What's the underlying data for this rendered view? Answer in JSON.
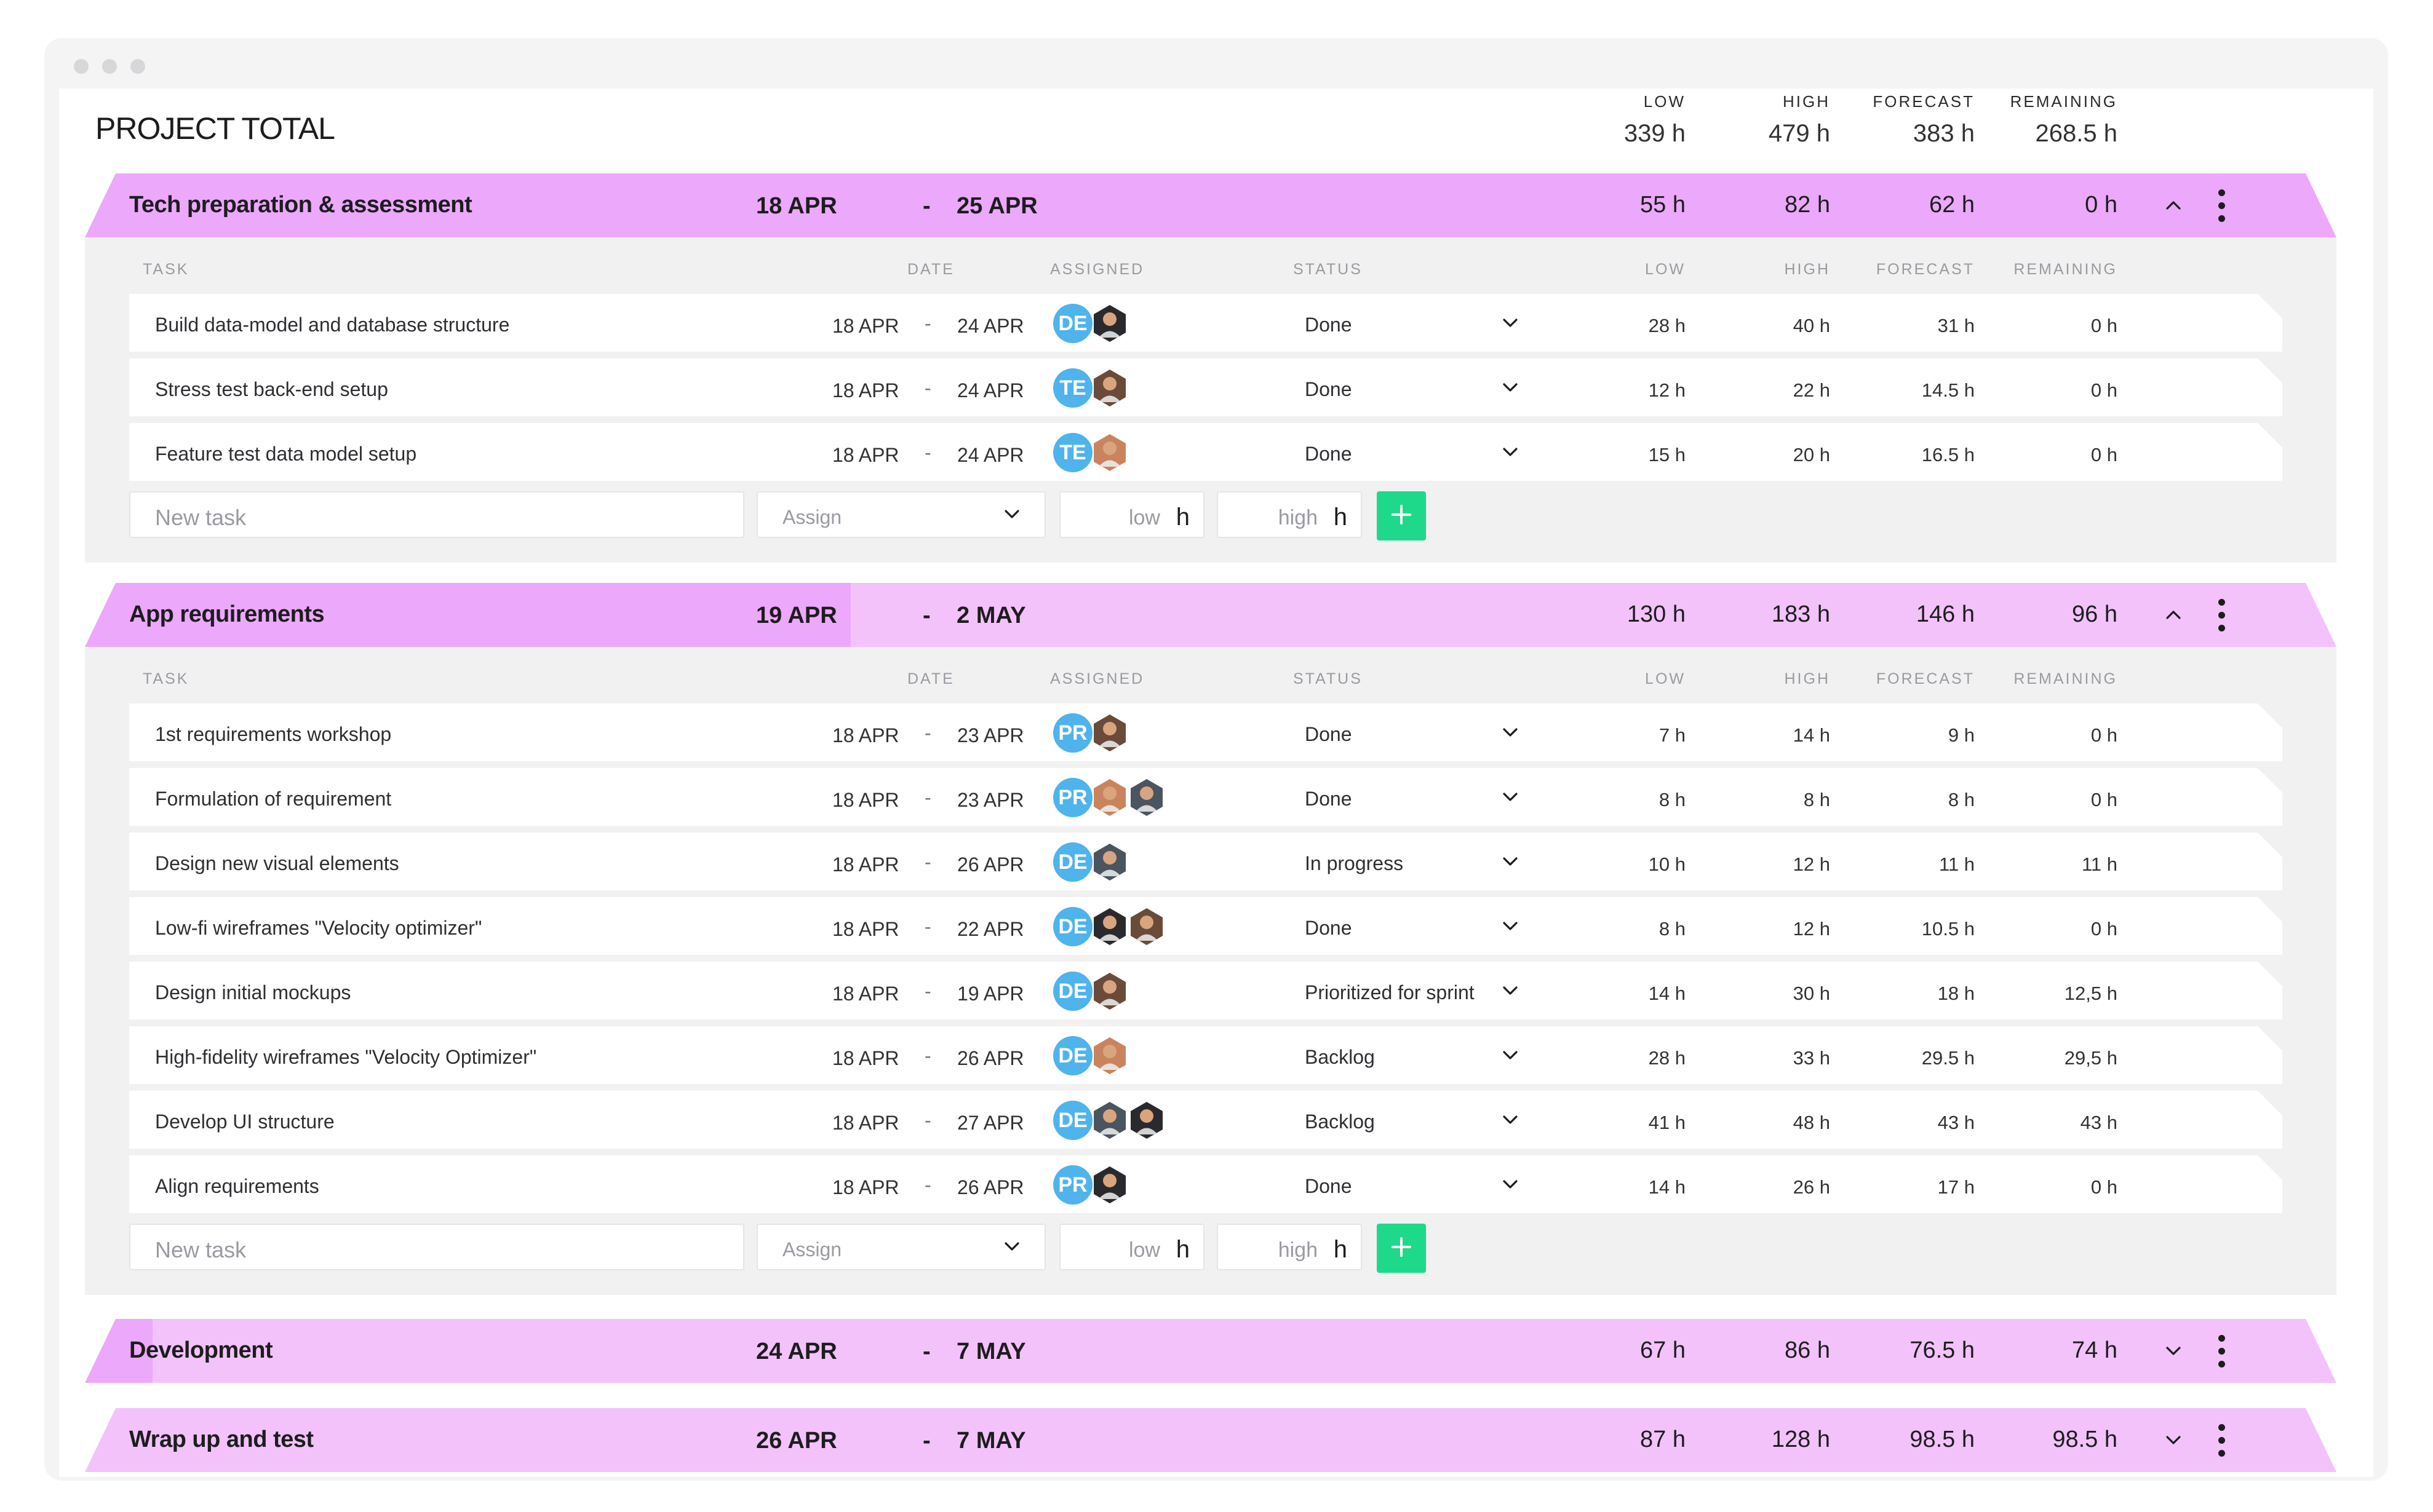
{
  "project": {
    "title": "PROJECT TOTAL",
    "totals": [
      {
        "label": "LOW",
        "value": "339 h"
      },
      {
        "label": "HIGH",
        "value": "479 h"
      },
      {
        "label": "FORECAST",
        "value": "383 h"
      },
      {
        "label": "REMAINING",
        "value": "268.5 h"
      }
    ]
  },
  "columns": {
    "task": "TASK",
    "date": "DATE",
    "assigned": "ASSIGNED",
    "status": "STATUS",
    "low": "LOW",
    "high": "HIGH",
    "forecast": "FORECAST",
    "remaining": "REMAINING"
  },
  "form": {
    "task_placeholder": "New task",
    "assign_placeholder": "Assign",
    "low_placeholder": "low",
    "high_placeholder": "high",
    "unit": "h",
    "add_icon": "plus-icon"
  },
  "colors": {
    "section_header": "#f3c2fb",
    "section_header_active": "#eca8fb",
    "avatar_initials": "#4fb3ec",
    "add_button": "#1fd98a"
  },
  "sections": [
    {
      "title": "Tech preparation & assessment",
      "start": "18 APR",
      "end": "25 APR",
      "low": "55 h",
      "high": "82 h",
      "forecast": "62 h",
      "remaining": "0 h",
      "expanded": true,
      "tasks": [
        {
          "name": "Build data-model and database structure",
          "start": "18 APR",
          "end": "24 APR",
          "initials": "DE",
          "photos": 1,
          "status": "Done",
          "low": "28 h",
          "high": "40 h",
          "forecast": "31 h",
          "remaining": "0 h"
        },
        {
          "name": "Stress test back-end setup",
          "start": "18 APR",
          "end": "24 APR",
          "initials": "TE",
          "photos": 1,
          "status": "Done",
          "low": "12 h",
          "high": "22 h",
          "forecast": "14.5 h",
          "remaining": "0 h"
        },
        {
          "name": "Feature test data model setup",
          "start": "18 APR",
          "end": "24 APR",
          "initials": "TE",
          "photos": 1,
          "status": "Done",
          "low": "15 h",
          "high": "20 h",
          "forecast": "16.5 h",
          "remaining": "0 h"
        }
      ]
    },
    {
      "title": "App requirements",
      "start": "19 APR",
      "end": "2 MAY",
      "low": "130 h",
      "high": "183 h",
      "forecast": "146 h",
      "remaining": "96 h",
      "expanded": true,
      "tasks": [
        {
          "name": "1st requirements workshop",
          "start": "18 APR",
          "end": "23 APR",
          "initials": "PR",
          "photos": 1,
          "status": "Done",
          "low": "7 h",
          "high": "14 h",
          "forecast": "9 h",
          "remaining": "0 h"
        },
        {
          "name": "Formulation of requirement",
          "start": "18 APR",
          "end": "23 APR",
          "initials": "PR",
          "photos": 2,
          "status": "Done",
          "low": "8 h",
          "high": "8 h",
          "forecast": "8 h",
          "remaining": "0 h"
        },
        {
          "name": "Design new visual elements",
          "start": "18 APR",
          "end": "26 APR",
          "initials": "DE",
          "photos": 1,
          "status": "In progress",
          "low": "10 h",
          "high": "12 h",
          "forecast": "11 h",
          "remaining": "11 h"
        },
        {
          "name": "Low-fi wireframes \"Velocity optimizer\"",
          "start": "18 APR",
          "end": "22 APR",
          "initials": "DE",
          "photos": 2,
          "status": "Done",
          "low": "8 h",
          "high": "12 h",
          "forecast": "10.5 h",
          "remaining": "0 h"
        },
        {
          "name": "Design initial mockups",
          "start": "18 APR",
          "end": "19 APR",
          "initials": "DE",
          "photos": 1,
          "status": "Prioritized for sprint",
          "low": "14 h",
          "high": "30 h",
          "forecast": "18 h",
          "remaining": "12,5 h"
        },
        {
          "name": "High-fidelity wireframes \"Velocity Optimizer\"",
          "start": "18 APR",
          "end": "26 APR",
          "initials": "DE",
          "photos": 1,
          "status": "Backlog",
          "low": "28 h",
          "high": "33 h",
          "forecast": "29.5 h",
          "remaining": "29,5 h"
        },
        {
          "name": "Develop UI structure",
          "start": "18 APR",
          "end": "27 APR",
          "initials": "DE",
          "photos": 2,
          "status": "Backlog",
          "low": "41 h",
          "high": "48 h",
          "forecast": "43 h",
          "remaining": "43 h"
        },
        {
          "name": "Align requirements",
          "start": "18 APR",
          "end": "26 APR",
          "initials": "PR",
          "photos": 1,
          "status": "Done",
          "low": "14 h",
          "high": "26 h",
          "forecast": "17 h",
          "remaining": "0 h"
        }
      ]
    },
    {
      "title": "Development",
      "start": "24 APR",
      "end": "7 MAY",
      "low": "67 h",
      "high": "86 h",
      "forecast": "76.5 h",
      "remaining": "74 h",
      "expanded": false,
      "tasks": []
    },
    {
      "title": "Wrap up and test",
      "start": "26 APR",
      "end": "7 MAY",
      "low": "87 h",
      "high": "128 h",
      "forecast": "98.5 h",
      "remaining": "98.5 h",
      "expanded": false,
      "tasks": []
    }
  ]
}
